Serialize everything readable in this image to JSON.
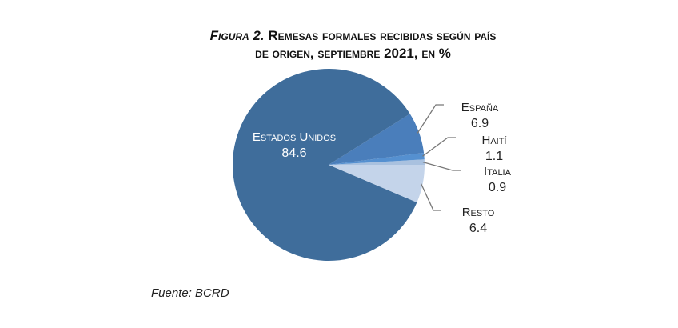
{
  "chart_data": {
    "type": "pie",
    "title_prefix": "Figura 2.",
    "title_line1": "Remesas formales recibidas según país",
    "title_line2": "de origen, septiembre 2021, en %",
    "slices": [
      {
        "label": "Italia",
        "value": 0.9,
        "color": "#a9c1df"
      },
      {
        "label": "Haití",
        "value": 1.1,
        "color": "#5590d0"
      },
      {
        "label": "España",
        "value": 6.9,
        "color": "#4a7ebb"
      },
      {
        "label": "Estados Unidos",
        "value": 84.6,
        "color": "#3f6d9b"
      },
      {
        "label": "Resto",
        "value": 6.4,
        "color": "#c4d4ea"
      }
    ],
    "source": "Fuente: BCRD"
  }
}
